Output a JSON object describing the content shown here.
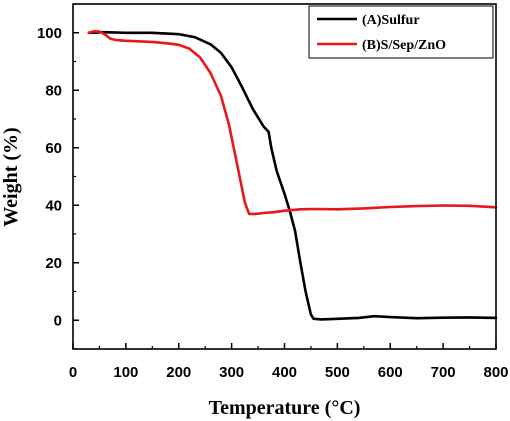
{
  "chart_data": {
    "type": "line",
    "xlabel": "Temperature (°C)",
    "ylabel": "Weight (%)",
    "xlim": [
      0,
      800
    ],
    "ylim": [
      -10,
      110
    ],
    "x_ticks": [
      0,
      100,
      200,
      300,
      400,
      500,
      600,
      700,
      800
    ],
    "y_ticks": [
      0,
      20,
      40,
      60,
      80,
      100
    ],
    "grid": false,
    "legend_position": "top-right",
    "series": [
      {
        "name": "(A)Sulfur",
        "color": "#000000",
        "points": [
          [
            30,
            100
          ],
          [
            60,
            100.2
          ],
          [
            100,
            100
          ],
          [
            150,
            100
          ],
          [
            200,
            99.5
          ],
          [
            230,
            98.5
          ],
          [
            260,
            96
          ],
          [
            280,
            93
          ],
          [
            300,
            88
          ],
          [
            320,
            81
          ],
          [
            340,
            73.5
          ],
          [
            360,
            67.5
          ],
          [
            370,
            65.5
          ],
          [
            375,
            60
          ],
          [
            385,
            52
          ],
          [
            400,
            44
          ],
          [
            410,
            38
          ],
          [
            420,
            31
          ],
          [
            430,
            20
          ],
          [
            440,
            10
          ],
          [
            450,
            2
          ],
          [
            455,
            0.5
          ],
          [
            470,
            0.3
          ],
          [
            500,
            0.5
          ],
          [
            540,
            0.8
          ],
          [
            570,
            1.4
          ],
          [
            600,
            1.1
          ],
          [
            650,
            0.7
          ],
          [
            700,
            0.9
          ],
          [
            750,
            1.0
          ],
          [
            800,
            0.8
          ]
        ]
      },
      {
        "name": "(B)S/Sep/ZnO",
        "color": "#e8171b",
        "points": [
          [
            30,
            100
          ],
          [
            40,
            100.5
          ],
          [
            50,
            100.4
          ],
          [
            60,
            99.5
          ],
          [
            70,
            98
          ],
          [
            80,
            97.5
          ],
          [
            100,
            97.2
          ],
          [
            150,
            96.8
          ],
          [
            180,
            96.3
          ],
          [
            200,
            95.8
          ],
          [
            220,
            94.5
          ],
          [
            240,
            91.5
          ],
          [
            260,
            86
          ],
          [
            280,
            78
          ],
          [
            295,
            68
          ],
          [
            305,
            59
          ],
          [
            315,
            50
          ],
          [
            325,
            41
          ],
          [
            333,
            37
          ],
          [
            345,
            37
          ],
          [
            360,
            37.3
          ],
          [
            380,
            37.6
          ],
          [
            400,
            38.1
          ],
          [
            430,
            38.6
          ],
          [
            460,
            38.7
          ],
          [
            500,
            38.6
          ],
          [
            550,
            38.9
          ],
          [
            600,
            39.4
          ],
          [
            650,
            39.7
          ],
          [
            700,
            39.9
          ],
          [
            750,
            39.8
          ],
          [
            800,
            39.3
          ]
        ]
      }
    ]
  }
}
